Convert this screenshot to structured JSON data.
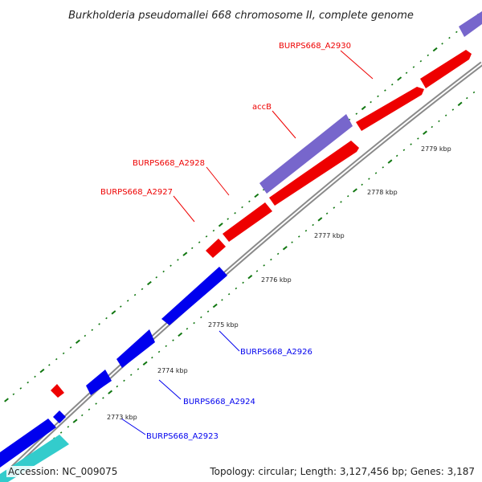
{
  "title": "Burkholderia pseudomallei 668 chromosome II, complete genome",
  "footer": {
    "accession": "Accession: NC_009075",
    "summary": "Topology: circular; Length: 3,127,456 bp; Genes: 3,187"
  },
  "colors": {
    "forward_cds": "#ff0000",
    "reverse_cds": "#0000ff",
    "accB_feature": "#7766cc",
    "teal_feature": "#33cccc",
    "backbone": "#8a8a8a",
    "tick": "#117711"
  },
  "gene_labels": [
    {
      "id": "BURPS668_A2930",
      "text": "BURPS668_A2930",
      "strand": "forward"
    },
    {
      "id": "accB",
      "text": "accB",
      "strand": "forward"
    },
    {
      "id": "BURPS668_A2928",
      "text": "BURPS668_A2928",
      "strand": "forward"
    },
    {
      "id": "BURPS668_A2927",
      "text": "BURPS668_A2927",
      "strand": "forward"
    },
    {
      "id": "BURPS668_A2926",
      "text": "BURPS668_A2926",
      "strand": "reverse"
    },
    {
      "id": "BURPS668_A2924",
      "text": "BURPS668_A2924",
      "strand": "reverse"
    },
    {
      "id": "BURPS668_A2923",
      "text": "BURPS668_A2923",
      "strand": "reverse"
    }
  ],
  "scale_labels": [
    "2779 kbp",
    "2778 kbp",
    "2777 kbp",
    "2776 kbp",
    "2775 kbp",
    "2774 kbp",
    "2773 kbp"
  ]
}
